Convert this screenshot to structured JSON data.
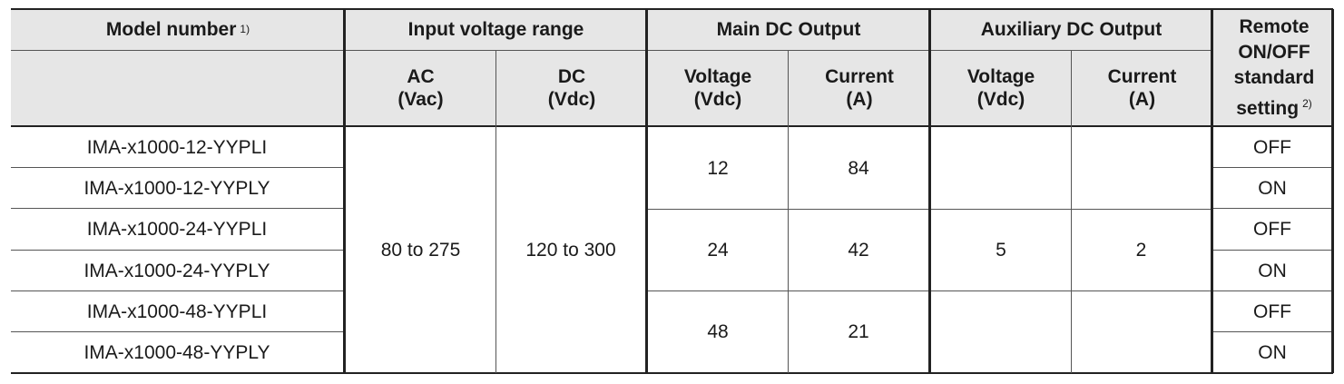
{
  "header": {
    "model": "Model number",
    "model_note": "1)",
    "input": "Input voltage range",
    "main": "Main DC Output",
    "aux": "Auxiliary DC Output",
    "remote": "Remote ON/OFF standard setting",
    "remote_note": "2)",
    "sub": [
      {
        "name": "AC",
        "unit": "(Vac)"
      },
      {
        "name": "DC",
        "unit": "(Vdc)"
      },
      {
        "name": "Voltage",
        "unit": "(Vdc)"
      },
      {
        "name": "Current",
        "unit": "(A)"
      },
      {
        "name": "Voltage",
        "unit": "(Vdc)"
      },
      {
        "name": "Current",
        "unit": "(A)"
      }
    ]
  },
  "table": {
    "models": [
      "IMA-x1000-12-YYPLI",
      "IMA-x1000-12-YYPLY",
      "IMA-x1000-24-YYPLI",
      "IMA-x1000-24-YYPLY",
      "IMA-x1000-48-YYPLI",
      "IMA-x1000-48-YYPLY"
    ],
    "ac": "80 to 275",
    "dc": "120 to 300",
    "main": [
      {
        "voltage": "12",
        "current": "84"
      },
      {
        "voltage": "24",
        "current": "42"
      },
      {
        "voltage": "48",
        "current": "21"
      }
    ],
    "aux_voltage": "5",
    "aux_current": "2",
    "remote": [
      "OFF",
      "ON",
      "OFF",
      "ON",
      "OFF",
      "ON"
    ]
  }
}
